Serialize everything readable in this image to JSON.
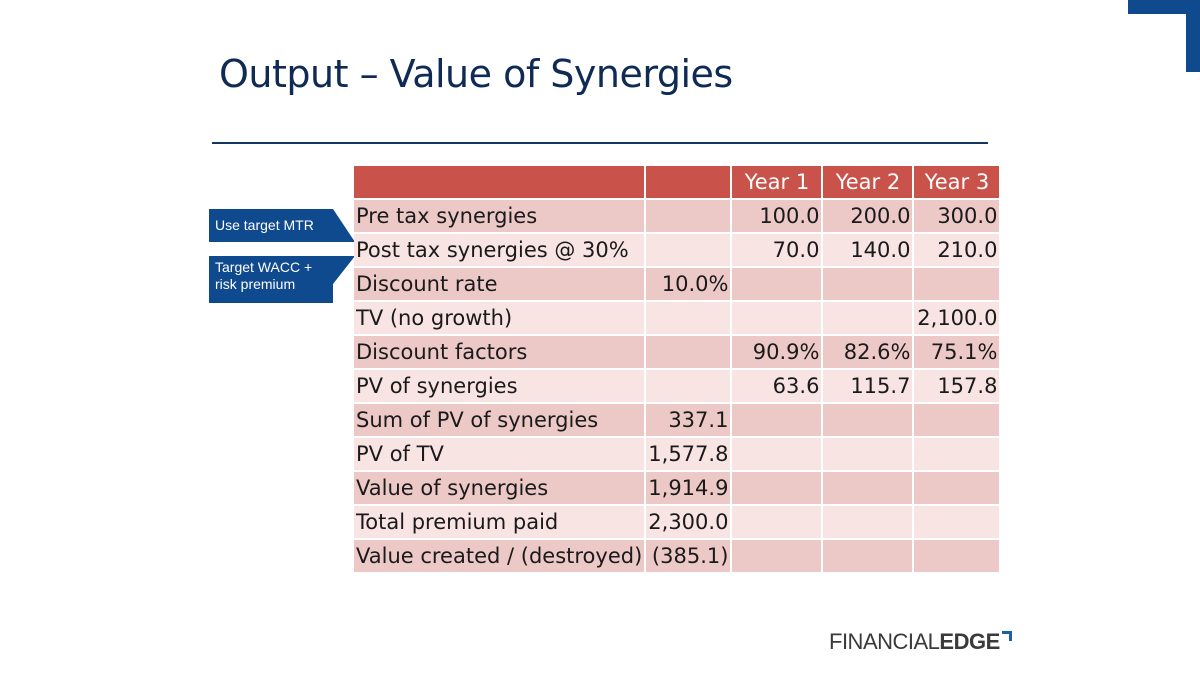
{
  "slide": {
    "title": "Output – Value of Synergies"
  },
  "callouts": [
    "Use target MTR",
    "Target WACC + risk premium"
  ],
  "table": {
    "headers": [
      "",
      "",
      "Year 1",
      "Year 2",
      "Year 3"
    ],
    "rows": [
      [
        "Pre tax synergies",
        "",
        "100.0",
        "200.0",
        "300.0"
      ],
      [
        "Post tax synergies @ 30%",
        "",
        "70.0",
        "140.0",
        "210.0"
      ],
      [
        "Discount rate",
        "10.0%",
        "",
        "",
        ""
      ],
      [
        "TV (no growth)",
        "",
        "",
        "",
        "2,100.0"
      ],
      [
        "Discount factors",
        "",
        "90.9%",
        "82.6%",
        "75.1%"
      ],
      [
        "PV of synergies",
        "",
        "63.6",
        "115.7",
        "157.8"
      ],
      [
        "Sum of PV of synergies",
        "337.1",
        "",
        "",
        ""
      ],
      [
        "PV of TV",
        "1,577.8",
        "",
        "",
        ""
      ],
      [
        "Value of synergies",
        "1,914.9",
        "",
        "",
        ""
      ],
      [
        "Total premium paid",
        "2,300.0",
        "",
        "",
        ""
      ],
      [
        "Value created / (destroyed)",
        "(385.1)",
        "",
        "",
        ""
      ]
    ]
  },
  "logo": {
    "part1": "FINANCIAL",
    "part2": "EDGE"
  },
  "colors": {
    "title": "#0f2a55",
    "header": "#c9534a",
    "row_dark": "#ecc9c7",
    "row_light": "#f7e4e3",
    "callout": "#0f4a8f"
  }
}
